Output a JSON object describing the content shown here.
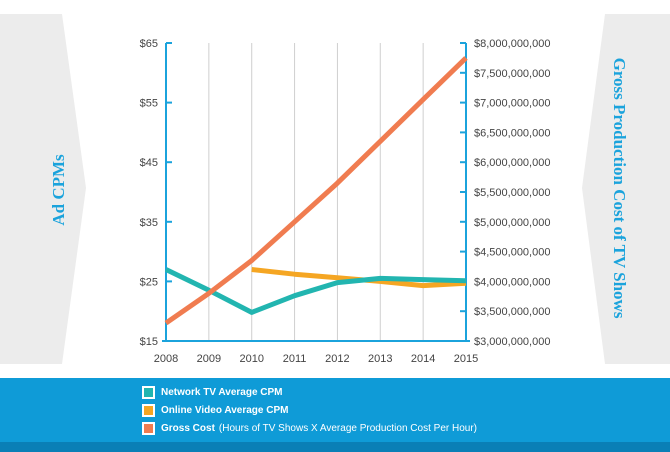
{
  "chart_data": {
    "type": "line",
    "x": [
      "2008",
      "2009",
      "2010",
      "2011",
      "2012",
      "2013",
      "2014",
      "2015"
    ],
    "y_left": {
      "title": "Ad CPMs",
      "ticks": [
        "$15",
        "$25",
        "$35",
        "$45",
        "$55",
        "$65"
      ],
      "range": [
        15,
        65
      ]
    },
    "y_right": {
      "title": "Gross Production Cost of TV Shows",
      "ticks": [
        "$3,000,000,000",
        "$3,500,000,000",
        "$4,000,000,000",
        "$4,500,000,000",
        "$5,000,000,000",
        "$5,500,000,000",
        "$6,000,000,000",
        "$6,500,000,000",
        "$7,000,000,000",
        "$7,500,000,000",
        "$8,000,000,000"
      ],
      "range": [
        3000000000,
        8000000000
      ]
    },
    "series": [
      {
        "name": "Network TV Average CPM",
        "axis": "left",
        "color": "#22b5b0",
        "values": [
          27,
          23.5,
          19.8,
          22.6,
          24.8,
          25.5,
          25.3,
          25.1
        ]
      },
      {
        "name": "Online Video Average CPM",
        "axis": "left",
        "color": "#f5a623",
        "values": [
          null,
          null,
          27,
          26.2,
          25.6,
          25,
          24.3,
          24.7
        ]
      },
      {
        "name": "Gross Cost",
        "note": "(Hours of TV Shows X Average Production Cost Per Hour)",
        "axis": "right",
        "color": "#f07c50",
        "values": [
          3300000000,
          3800000000,
          4350000000,
          5000000000,
          5650000000,
          6350000000,
          7050000000,
          7750000000
        ]
      }
    ],
    "grid": "vertical",
    "legend_position": "bottom"
  },
  "colors": {
    "axis": "#1ba3dc",
    "legend_band": "#0f9bd7",
    "side_panel": "#ececec"
  }
}
